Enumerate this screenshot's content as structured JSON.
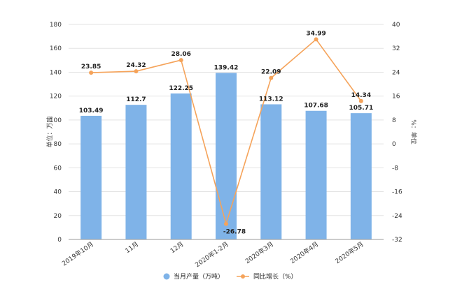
{
  "chart_data": {
    "type": "bar+line",
    "categories": [
      "2019年10月",
      "11月",
      "12月",
      "2020年1-2月",
      "2020年3月",
      "2020年4月",
      "2020年5月"
    ],
    "series": [
      {
        "name": "当月产量（万吨）",
        "type": "bar",
        "axis": "left",
        "color": "#7fb3e8",
        "values": [
          103.49,
          112.7,
          122.25,
          139.42,
          113.12,
          107.68,
          105.71
        ],
        "labels": [
          "103.49",
          "112.7",
          "122.25",
          "139.42",
          "113.12",
          "107.68",
          "105.71"
        ]
      },
      {
        "name": "同比增长（%）",
        "type": "line",
        "axis": "right",
        "color": "#f5a35a",
        "values": [
          23.85,
          24.32,
          28.06,
          -26.78,
          22.09,
          34.99,
          14.34
        ],
        "labels": [
          "23.85",
          "24.32",
          "28.06",
          "-26.78",
          "22.09",
          "34.99",
          "14.34"
        ]
      }
    ],
    "y_left": {
      "label": "单位：万吨",
      "range": [
        0,
        180
      ],
      "ticks": [
        0,
        20,
        40,
        60,
        80,
        100,
        120,
        140,
        160,
        180
      ]
    },
    "y_right": {
      "label": "%：单位",
      "range": [
        -32,
        40
      ],
      "ticks": [
        -32,
        -24,
        -16,
        -8,
        0,
        8,
        16,
        24,
        32,
        40
      ]
    },
    "grid": true,
    "legend_position": "bottom"
  }
}
